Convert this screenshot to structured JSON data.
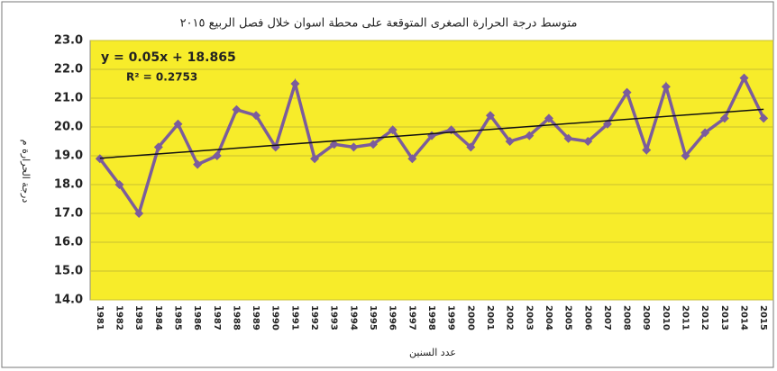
{
  "chart_data": {
    "type": "line",
    "title": "متوسط درجة الحرارة الصغرى المتوقعة على محطة اسوان خلال فصل الربيع ٢٠١٥",
    "y_label": "درجة الحرارة م",
    "x_label": "عدد السنين",
    "categories": [
      "1981",
      "1982",
      "1983",
      "1984",
      "1985",
      "1986",
      "1987",
      "1988",
      "1989",
      "1990",
      "1991",
      "1992",
      "1993",
      "1994",
      "1995",
      "1996",
      "1997",
      "1998",
      "1999",
      "2000",
      "2001",
      "2002",
      "2003",
      "2004",
      "2005",
      "2006",
      "2007",
      "2008",
      "2009",
      "2010",
      "2011",
      "2012",
      "2013",
      "2014",
      "2015"
    ],
    "series": [
      {
        "name": "متوسط درجة الحرارة الصغرى",
        "color": "#7b5c9c",
        "values": [
          18.9,
          18.0,
          17.0,
          19.3,
          20.1,
          18.7,
          19.0,
          20.6,
          20.4,
          19.3,
          21.5,
          18.9,
          19.4,
          19.3,
          19.4,
          19.9,
          18.9,
          19.7,
          19.9,
          19.3,
          20.4,
          19.5,
          19.7,
          20.3,
          19.6,
          19.5,
          20.1,
          21.2,
          19.2,
          21.4,
          19.0,
          19.8,
          20.3,
          21.7,
          20.3
        ]
      }
    ],
    "trendline": {
      "label": "y = 0.05x + 18.865",
      "r2_label": "R² = 0.2753",
      "slope": 0.05,
      "intercept": 18.865,
      "color": "#111111"
    },
    "ylim": [
      14,
      23
    ],
    "yticks": [
      {
        "value": 14,
        "label": "14.0"
      },
      {
        "value": 15,
        "label": "15.0"
      },
      {
        "value": 16,
        "label": "16.0"
      },
      {
        "value": 17,
        "label": "17.0"
      },
      {
        "value": 18,
        "label": "18.0"
      },
      {
        "value": 19,
        "label": "19.0"
      },
      {
        "value": 20,
        "label": "20.0"
      },
      {
        "value": 21,
        "label": "21.0"
      },
      {
        "value": 22,
        "label": "22.0"
      },
      {
        "value": 23,
        "label": "23.0"
      }
    ],
    "grid": true,
    "plot_background": "#f7ec2a"
  }
}
